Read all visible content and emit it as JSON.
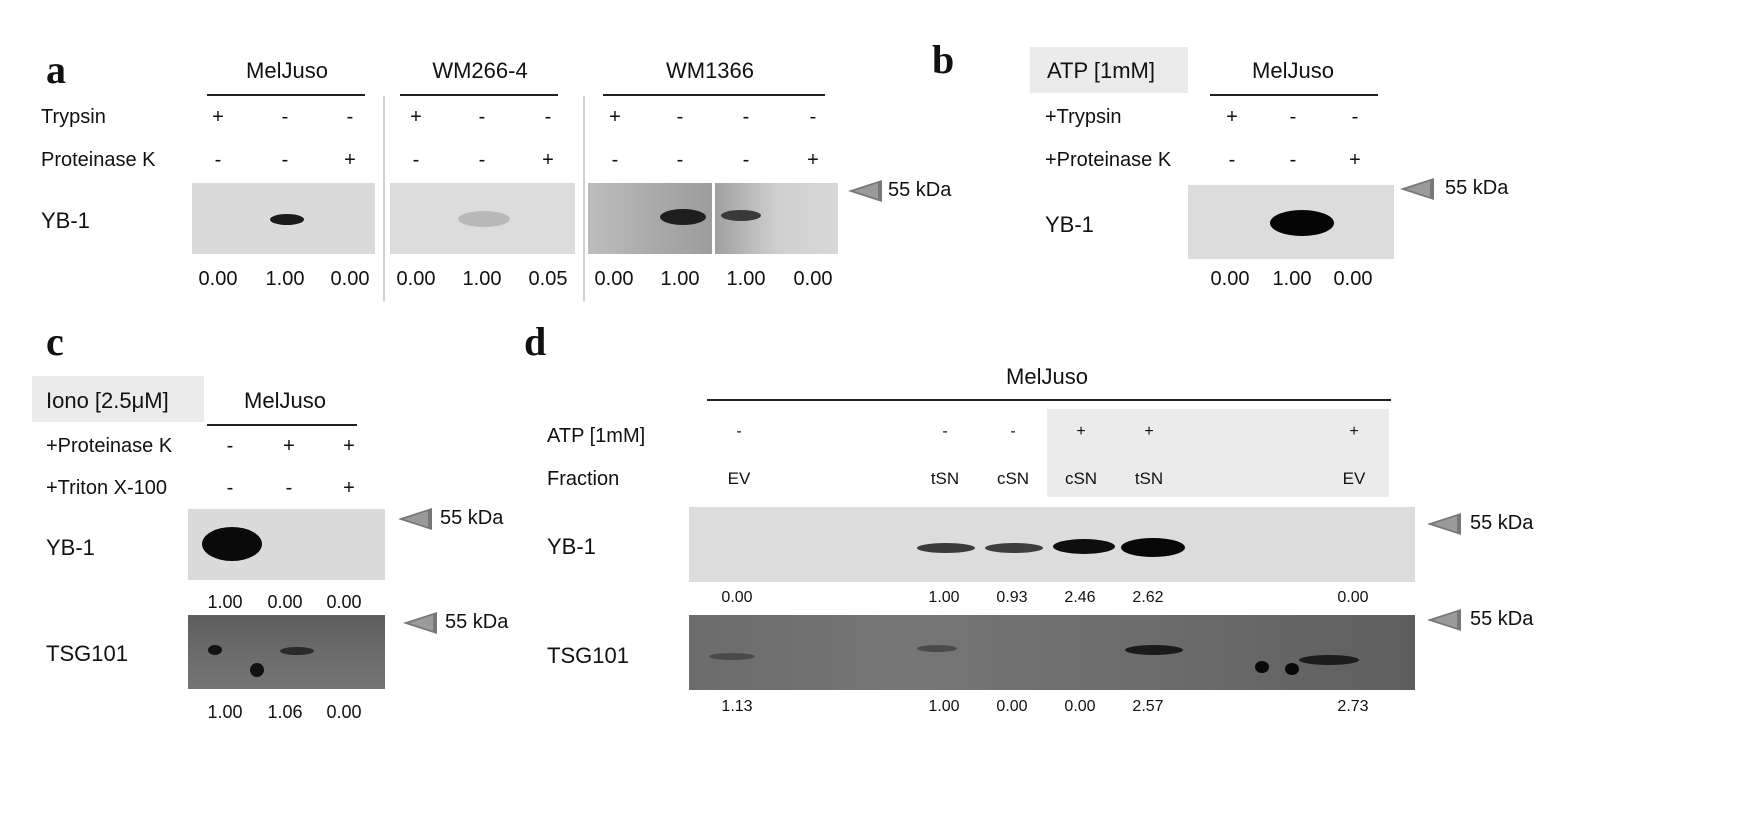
{
  "panel_a": {
    "letter": "a",
    "cell_lines": [
      "MelJuso",
      "WM266-4",
      "WM1366"
    ],
    "rows": [
      "Trypsin",
      "Proteinase K"
    ],
    "trypsin": [
      "+",
      "-",
      "-",
      "+",
      "-",
      "-",
      "+",
      "-",
      "-",
      "-"
    ],
    "proteinase_k": [
      "-",
      "-",
      "+",
      "-",
      "-",
      "+",
      "-",
      "-",
      "-",
      "+"
    ],
    "blot_label": "YB-1",
    "marker": "55 kDa",
    "values": [
      "0.00",
      "1.00",
      "0.00",
      "0.00",
      "1.00",
      "0.05",
      "0.00",
      "1.00",
      "1.00",
      "0.00"
    ]
  },
  "panel_b": {
    "letter": "b",
    "treatment": "ATP [1mM]",
    "cell_line": "MelJuso",
    "rows": [
      "+Trypsin",
      "+Proteinase K"
    ],
    "trypsin": [
      "+",
      "-",
      "-"
    ],
    "proteinase_k": [
      "-",
      "-",
      "+"
    ],
    "blot_label": "YB-1",
    "marker": "55 kDa",
    "values": [
      "0.00",
      "1.00",
      "0.00"
    ]
  },
  "panel_c": {
    "letter": "c",
    "treatment": "Iono [2.5μM]",
    "cell_line": "MelJuso",
    "rows": [
      "+Proteinase K",
      "+Triton X-100"
    ],
    "proteinase_k": [
      "-",
      "+",
      "+"
    ],
    "triton": [
      "-",
      "-",
      "+"
    ],
    "blot1_label": "YB-1",
    "blot1_values": [
      "1.00",
      "0.00",
      "0.00"
    ],
    "blot2_label": "TSG101",
    "blot2_values": [
      "1.00",
      "1.06",
      "0.00"
    ],
    "marker": "55 kDa"
  },
  "panel_d": {
    "letter": "d",
    "cell_line": "MelJuso",
    "rows": [
      "ATP [1mM]",
      "Fraction"
    ],
    "atp": [
      "-",
      "-",
      "-",
      "+",
      "+",
      "+"
    ],
    "fraction": [
      "EV",
      "tSN",
      "cSN",
      "cSN",
      "tSN",
      "EV"
    ],
    "blot1_label": "YB-1",
    "blot1_values": [
      "0.00",
      "1.00",
      "0.93",
      "2.46",
      "2.62",
      "0.00"
    ],
    "blot2_label": "TSG101",
    "blot2_values": [
      "1.13",
      "1.00",
      "0.00",
      "0.00",
      "2.57",
      "2.73"
    ],
    "marker": "55 kDa"
  },
  "colors": {
    "blot_light": "#d8d8d8",
    "blot_dark": "#6a6a6a",
    "band": "#0d0d0d",
    "arrow": "#888888",
    "highlight": "#ebebeb"
  }
}
